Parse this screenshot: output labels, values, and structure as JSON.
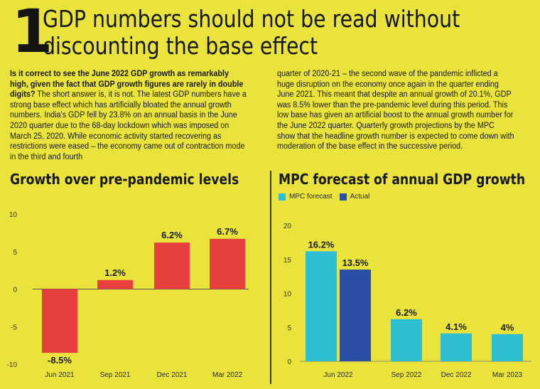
{
  "headline": {
    "number": "1",
    "title_line1": "GDP numbers should not be read without",
    "title_line2": "discounting the base effect"
  },
  "article": {
    "question": "Is it correct to see the June 2022 GDP growth as remarkably high, given the fact that GDP growth figures are rarely in double digits?",
    "col1_rest": "The short answer is, it is not. The latest GDP numbers have a strong base effect which has artificially bloated the annual growth numbers. India's GDP fell by 23.8% on an annual basis in the June 2020 quarter due to the 68-day lockdown which was imposed on March 25, 2020. While economic activity started recovering as restrictions were eased – the economy came out of contraction mode in the third and fourth",
    "col2": "quarter of 2020-21 – the second wave of the pandemic inflicted a huge disruption on the economy once again in the quarter ending June 2021. This meant that despite an annual growth of 20.1%, GDP was 8.5% lower than the pre-pandemic level during this period. This low base has given an artificial boost to the annual growth number for the June 2022 quarter. Quarterly growth projections by the MPC show that the headline growth number is expected to come down with moderation of the base effect in the successive period."
  },
  "colors": {
    "background": "#e9e33c",
    "negative_bar": "#e8403f",
    "mpc_forecast": "#2ebfd3",
    "actual": "#2b4fa6"
  },
  "legend": {
    "forecast_label": "MPC forecast",
    "actual_label": "Actual"
  },
  "chart_data": [
    {
      "type": "bar",
      "title": "Growth over pre-pandemic levels",
      "categories": [
        "Jun 2021",
        "Sep 2021",
        "Dec 2021",
        "Mar 2022"
      ],
      "values": [
        -8.5,
        1.2,
        6.2,
        6.7
      ],
      "value_labels": [
        "-8.5%",
        "1.2%",
        "6.2%",
        "6.7%"
      ],
      "ylim": [
        -10,
        10
      ],
      "yticks": [
        "10",
        "5",
        "0",
        "-5",
        "-10"
      ],
      "ytick_values": [
        10,
        5,
        0,
        -5,
        -10
      ],
      "grid": false
    },
    {
      "type": "bar",
      "title": "MPC forecast of annual GDP growth",
      "categories": [
        "Jun 2022",
        "Sep 2022",
        "Dec 2022",
        "Mar 2023"
      ],
      "series": [
        {
          "name": "MPC forecast",
          "values": [
            16.2,
            6.2,
            4.1,
            4.0
          ],
          "labels": [
            "16.2%",
            "6.2%",
            "4.1%",
            "4%"
          ]
        },
        {
          "name": "Actual",
          "values": [
            13.5,
            null,
            null,
            null
          ],
          "labels": [
            "13.5%",
            "",
            "",
            ""
          ]
        }
      ],
      "ylim": [
        0,
        20
      ],
      "yticks": [
        "20",
        "15",
        "10",
        "5",
        "0"
      ],
      "ytick_values": [
        20,
        15,
        10,
        5,
        0
      ],
      "legend": "top-left",
      "grid": false
    }
  ]
}
